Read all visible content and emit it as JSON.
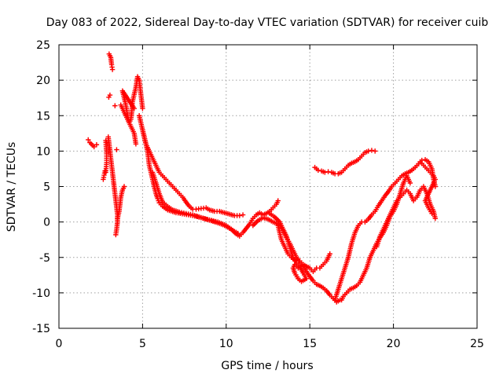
{
  "chart_data": {
    "type": "scatter",
    "title": "Day 083 of 2022, Sidereal Day-to-day VTEC variation (SDTVAR) for receiver cuib",
    "xlabel": "GPS time / hours",
    "ylabel": "SDTVAR / TECUs",
    "xlim": [
      0,
      25
    ],
    "ylim": [
      -15,
      25
    ],
    "xticks": [
      0,
      5,
      10,
      15,
      20,
      25
    ],
    "yticks": [
      -15,
      -10,
      -5,
      0,
      5,
      10,
      15,
      20,
      25
    ],
    "grid": true,
    "marker": "+",
    "color": "#ff0000",
    "series": [
      {
        "name": "s1",
        "points": [
          [
            1.75,
            11.6
          ],
          [
            1.85,
            11.2
          ],
          [
            2.1,
            10.6
          ],
          [
            2.25,
            10.9
          ]
        ]
      },
      {
        "name": "s2",
        "points": [
          [
            2.65,
            6.0
          ],
          [
            2.7,
            6.6
          ],
          [
            2.75,
            7.2
          ],
          [
            2.8,
            7.0
          ],
          [
            2.85,
            8.4
          ],
          [
            2.85,
            9.6
          ],
          [
            2.8,
            11.5
          ],
          [
            2.9,
            11.0
          ]
        ]
      },
      {
        "name": "s3",
        "points": [
          [
            2.95,
            12.0
          ],
          [
            3.0,
            11.0
          ],
          [
            3.05,
            10.0
          ],
          [
            3.1,
            9.0
          ],
          [
            3.15,
            8.0
          ],
          [
            3.2,
            7.0
          ],
          [
            3.25,
            6.0
          ],
          [
            3.3,
            5.0
          ],
          [
            3.35,
            4.0
          ],
          [
            3.4,
            3.0
          ],
          [
            3.45,
            2.0
          ],
          [
            3.5,
            1.0
          ],
          [
            3.5,
            0.0
          ],
          [
            3.45,
            -1.0
          ],
          [
            3.4,
            -1.8
          ]
        ]
      },
      {
        "name": "s4",
        "points": [
          [
            3.5,
            0.5
          ],
          [
            3.6,
            1.5
          ],
          [
            3.65,
            2.5
          ],
          [
            3.7,
            3.5
          ],
          [
            3.8,
            4.5
          ],
          [
            3.9,
            5.0
          ],
          [
            3.45,
            10.2
          ]
        ]
      },
      {
        "name": "s5",
        "points": [
          [
            2.98,
            17.6
          ],
          [
            3.05,
            17.9
          ],
          [
            3.0,
            23.7
          ],
          [
            3.1,
            23.2
          ],
          [
            3.15,
            22.2
          ],
          [
            3.2,
            21.5
          ],
          [
            3.35,
            16.4
          ]
        ]
      },
      {
        "name": "s6",
        "points": [
          [
            3.7,
            16.5
          ],
          [
            3.9,
            15.5
          ],
          [
            4.1,
            14.5
          ],
          [
            4.3,
            13.5
          ],
          [
            4.5,
            12.5
          ],
          [
            4.6,
            11.0
          ],
          [
            4.5,
            16.0
          ],
          [
            3.8,
            18.5
          ],
          [
            3.9,
            17.5
          ],
          [
            4.0,
            16.5
          ],
          [
            4.1,
            15.0
          ],
          [
            4.2,
            14.0
          ],
          [
            4.3,
            14.5
          ],
          [
            4.35,
            15.5
          ],
          [
            4.4,
            17.0
          ],
          [
            4.5,
            18.0
          ],
          [
            4.6,
            19.0
          ],
          [
            4.7,
            20.5
          ],
          [
            4.8,
            20.0
          ],
          [
            4.85,
            19.0
          ],
          [
            4.9,
            18.0
          ],
          [
            4.95,
            17.0
          ],
          [
            5.0,
            16.0
          ]
        ]
      },
      {
        "name": "s7",
        "points": [
          [
            4.8,
            15.0
          ],
          [
            4.9,
            14.0
          ],
          [
            5.0,
            13.0
          ],
          [
            5.1,
            12.0
          ],
          [
            5.2,
            11.0
          ],
          [
            5.3,
            10.0
          ],
          [
            5.35,
            9.0
          ],
          [
            5.4,
            8.0
          ],
          [
            5.5,
            7.0
          ],
          [
            5.6,
            6.0
          ],
          [
            5.7,
            5.0
          ],
          [
            5.8,
            4.0
          ],
          [
            5.9,
            3.3
          ],
          [
            6.0,
            2.7
          ],
          [
            6.2,
            2.2
          ],
          [
            6.5,
            1.7
          ],
          [
            7.0,
            1.3
          ],
          [
            7.5,
            1.1
          ],
          [
            8.0,
            0.9
          ],
          [
            8.5,
            0.6
          ],
          [
            9.0,
            0.3
          ],
          [
            9.5,
            0.0
          ],
          [
            10.0,
            -0.5
          ],
          [
            10.3,
            -1.0
          ],
          [
            10.6,
            -1.7
          ],
          [
            10.8,
            -2.0
          ],
          [
            11.0,
            -1.5
          ],
          [
            11.2,
            -0.9
          ],
          [
            11.4,
            -0.3
          ],
          [
            11.6,
            0.5
          ],
          [
            11.8,
            1.0
          ],
          [
            12.0,
            1.3
          ],
          [
            12.2,
            1.0
          ],
          [
            12.4,
            1.2
          ],
          [
            12.6,
            1.5
          ],
          [
            12.8,
            2.0
          ],
          [
            13.0,
            2.5
          ],
          [
            13.1,
            3.0
          ]
        ]
      },
      {
        "name": "s8",
        "points": [
          [
            5.0,
            13.0
          ],
          [
            5.2,
            11.0
          ],
          [
            5.4,
            10.0
          ],
          [
            5.6,
            9.0
          ],
          [
            5.8,
            8.0
          ],
          [
            6.0,
            7.0
          ],
          [
            6.2,
            6.5
          ],
          [
            6.4,
            6.0
          ],
          [
            6.6,
            5.5
          ],
          [
            6.8,
            5.0
          ],
          [
            7.0,
            4.5
          ],
          [
            7.2,
            4.0
          ],
          [
            7.4,
            3.5
          ],
          [
            7.6,
            2.8
          ],
          [
            7.8,
            2.2
          ],
          [
            8.0,
            1.8
          ],
          [
            8.2,
            1.8
          ],
          [
            8.5,
            1.9
          ],
          [
            8.8,
            2.0
          ],
          [
            9.0,
            1.7
          ],
          [
            9.3,
            1.5
          ],
          [
            9.6,
            1.5
          ],
          [
            9.9,
            1.3
          ],
          [
            10.2,
            1.1
          ],
          [
            10.5,
            0.9
          ],
          [
            10.8,
            0.9
          ],
          [
            11.0,
            1.0
          ]
        ]
      },
      {
        "name": "s9",
        "points": [
          [
            5.6,
            7.0
          ],
          [
            5.8,
            5.5
          ],
          [
            6.0,
            4.0
          ],
          [
            6.2,
            2.8
          ],
          [
            6.5,
            2.2
          ],
          [
            6.8,
            1.7
          ],
          [
            7.2,
            1.4
          ],
          [
            7.6,
            1.2
          ],
          [
            8.0,
            1.0
          ],
          [
            8.4,
            0.7
          ],
          [
            8.8,
            0.4
          ],
          [
            9.2,
            0.1
          ],
          [
            9.6,
            -0.2
          ],
          [
            10.0,
            -0.6
          ],
          [
            10.4,
            -1.2
          ],
          [
            10.7,
            -1.6
          ]
        ]
      },
      {
        "name": "s10",
        "points": [
          [
            11.6,
            -0.5
          ],
          [
            11.9,
            0.2
          ],
          [
            12.2,
            0.6
          ],
          [
            12.5,
            0.4
          ],
          [
            12.8,
            0.0
          ],
          [
            13.0,
            -0.2
          ],
          [
            13.2,
            -0.5
          ],
          [
            13.4,
            -1.2
          ],
          [
            13.6,
            -2.2
          ],
          [
            13.8,
            -3.0
          ],
          [
            14.0,
            -4.0
          ],
          [
            14.2,
            -5.0
          ],
          [
            14.4,
            -5.8
          ],
          [
            14.6,
            -6.3
          ],
          [
            14.8,
            -7.0
          ],
          [
            15.0,
            -7.7
          ],
          [
            15.2,
            -8.3
          ],
          [
            15.4,
            -8.8
          ],
          [
            15.6,
            -9.0
          ],
          [
            15.8,
            -9.3
          ],
          [
            16.0,
            -9.7
          ],
          [
            16.2,
            -10.3
          ],
          [
            16.4,
            -10.8
          ],
          [
            16.6,
            -11.3
          ],
          [
            16.8,
            -11.0
          ]
        ]
      },
      {
        "name": "s11",
        "points": [
          [
            12.6,
            1.2
          ],
          [
            12.9,
            0.7
          ],
          [
            13.2,
            0.0
          ],
          [
            13.4,
            -1.0
          ],
          [
            13.6,
            -2.0
          ],
          [
            13.8,
            -3.5
          ],
          [
            14.0,
            -5.0
          ],
          [
            14.2,
            -5.8
          ],
          [
            14.4,
            -6.3
          ],
          [
            14.6,
            -7.2
          ],
          [
            14.8,
            -8.0
          ],
          [
            14.5,
            -8.4
          ],
          [
            14.3,
            -8.0
          ],
          [
            14.1,
            -7.2
          ],
          [
            14.0,
            -6.5
          ],
          [
            14.1,
            -6.0
          ],
          [
            14.3,
            -6.5
          ],
          [
            14.6,
            -6.0
          ],
          [
            15.0,
            -6.5
          ],
          [
            15.2,
            -7.0
          ],
          [
            15.4,
            -6.5
          ],
          [
            15.6,
            -6.5
          ],
          [
            15.8,
            -6.0
          ],
          [
            16.0,
            -5.5
          ],
          [
            16.2,
            -4.5
          ]
        ]
      },
      {
        "name": "s12",
        "points": [
          [
            13.1,
            -0.5
          ],
          [
            13.3,
            -2.5
          ],
          [
            13.5,
            -3.5
          ],
          [
            13.7,
            -4.5
          ],
          [
            13.9,
            -5.0
          ],
          [
            14.1,
            -5.4
          ],
          [
            14.3,
            -5.2
          ],
          [
            14.4,
            -5.5
          ],
          [
            14.6,
            -6.0
          ],
          [
            14.8,
            -6.5
          ]
        ]
      },
      {
        "name": "s13",
        "points": [
          [
            15.3,
            7.7
          ],
          [
            15.5,
            7.3
          ],
          [
            15.7,
            7.2
          ],
          [
            15.9,
            7.0
          ],
          [
            16.1,
            7.1
          ],
          [
            16.3,
            7.0
          ],
          [
            16.5,
            6.8
          ],
          [
            16.7,
            6.8
          ],
          [
            16.9,
            7.0
          ],
          [
            17.1,
            7.5
          ],
          [
            17.3,
            8.0
          ],
          [
            17.5,
            8.3
          ],
          [
            17.7,
            8.5
          ],
          [
            17.9,
            8.8
          ],
          [
            18.1,
            9.3
          ],
          [
            18.3,
            9.8
          ],
          [
            18.5,
            10.0
          ],
          [
            18.7,
            10.1
          ],
          [
            18.9,
            10.0
          ]
        ]
      },
      {
        "name": "s14",
        "points": [
          [
            16.9,
            -11.0
          ],
          [
            17.0,
            -10.5
          ],
          [
            17.2,
            -10.0
          ],
          [
            17.4,
            -9.5
          ],
          [
            17.6,
            -9.3
          ],
          [
            17.8,
            -9.0
          ],
          [
            18.0,
            -8.5
          ],
          [
            18.2,
            -7.5
          ],
          [
            18.4,
            -6.5
          ],
          [
            18.6,
            -5.0
          ],
          [
            18.8,
            -4.0
          ],
          [
            19.0,
            -3.0
          ],
          [
            19.2,
            -2.2
          ],
          [
            19.4,
            -1.5
          ],
          [
            19.6,
            -0.5
          ],
          [
            19.8,
            0.8
          ],
          [
            20.0,
            1.5
          ],
          [
            20.2,
            2.5
          ],
          [
            20.4,
            4.0
          ],
          [
            20.6,
            5.5
          ],
          [
            20.8,
            6.5
          ],
          [
            21.0,
            5.5
          ]
        ]
      },
      {
        "name": "s15",
        "points": [
          [
            16.5,
            -11.0
          ],
          [
            16.7,
            -9.5
          ],
          [
            16.9,
            -8.0
          ],
          [
            17.1,
            -6.5
          ],
          [
            17.3,
            -5.0
          ],
          [
            17.5,
            -3.0
          ],
          [
            17.7,
            -1.5
          ],
          [
            17.9,
            -0.5
          ],
          [
            18.1,
            0.0
          ],
          [
            18.3,
            0.0
          ],
          [
            18.5,
            0.4
          ],
          [
            18.7,
            1.0
          ],
          [
            18.9,
            1.5
          ],
          [
            19.1,
            2.3
          ],
          [
            19.3,
            3.0
          ],
          [
            19.5,
            3.7
          ],
          [
            19.7,
            4.3
          ],
          [
            19.9,
            5.0
          ],
          [
            20.1,
            5.5
          ],
          [
            20.3,
            6.0
          ],
          [
            20.5,
            6.5
          ],
          [
            20.7,
            6.8
          ],
          [
            20.9,
            7.0
          ],
          [
            21.1,
            7.3
          ],
          [
            21.3,
            7.7
          ],
          [
            21.5,
            8.2
          ],
          [
            21.7,
            8.7
          ],
          [
            21.9,
            8.8
          ],
          [
            22.1,
            8.5
          ],
          [
            22.3,
            7.5
          ],
          [
            22.4,
            6.0
          ],
          [
            22.5,
            5.0
          ]
        ]
      },
      {
        "name": "s16",
        "points": [
          [
            19.0,
            -3.5
          ],
          [
            19.2,
            -2.0
          ],
          [
            19.4,
            -1.0
          ],
          [
            19.6,
            0.0
          ],
          [
            19.8,
            1.0
          ],
          [
            20.0,
            2.0
          ],
          [
            20.2,
            3.0
          ],
          [
            20.4,
            3.5
          ],
          [
            20.6,
            4.0
          ],
          [
            20.8,
            4.5
          ],
          [
            21.0,
            4.0
          ],
          [
            21.2,
            3.0
          ],
          [
            21.4,
            3.5
          ],
          [
            21.6,
            4.5
          ],
          [
            21.8,
            5.0
          ],
          [
            22.0,
            4.0
          ],
          [
            22.2,
            2.5
          ],
          [
            22.4,
            1.5
          ],
          [
            22.5,
            0.5
          ]
        ]
      },
      {
        "name": "s17",
        "points": [
          [
            21.6,
            8.5
          ],
          [
            21.8,
            8.0
          ],
          [
            22.0,
            7.5
          ],
          [
            22.2,
            7.0
          ],
          [
            22.4,
            6.5
          ],
          [
            22.5,
            6.0
          ],
          [
            21.9,
            3.0
          ],
          [
            22.1,
            2.0
          ],
          [
            22.3,
            1.2
          ]
        ]
      }
    ]
  }
}
